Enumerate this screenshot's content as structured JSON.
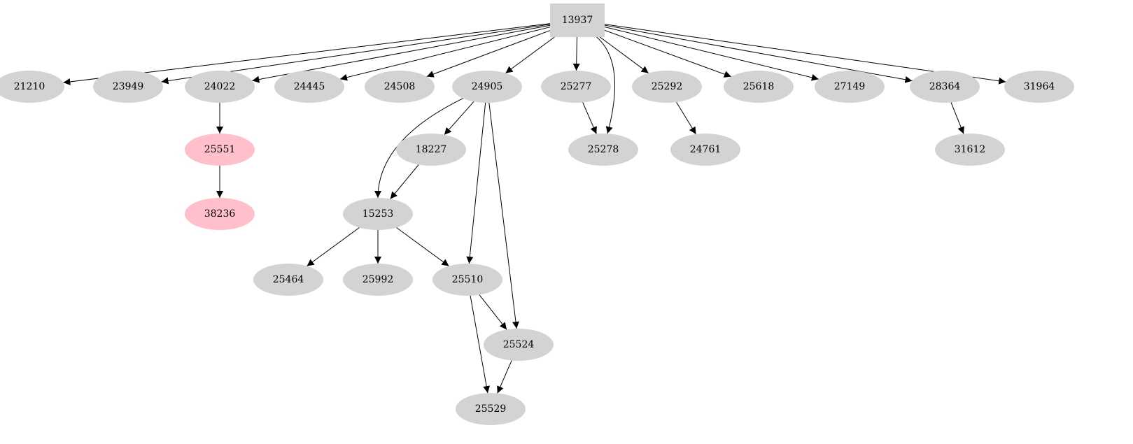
{
  "colors": {
    "default_fill": "#d3d3d3",
    "highlight_fill": "#ffc0cb",
    "edge": "#000000"
  },
  "nodes": [
    {
      "id": "13937",
      "shape": "box",
      "fill": "#d3d3d3"
    },
    {
      "id": "21210",
      "shape": "ellipse",
      "fill": "#d3d3d3"
    },
    {
      "id": "23949",
      "shape": "ellipse",
      "fill": "#d3d3d3"
    },
    {
      "id": "24022",
      "shape": "ellipse",
      "fill": "#d3d3d3"
    },
    {
      "id": "24445",
      "shape": "ellipse",
      "fill": "#d3d3d3"
    },
    {
      "id": "24508",
      "shape": "ellipse",
      "fill": "#d3d3d3"
    },
    {
      "id": "24905",
      "shape": "ellipse",
      "fill": "#d3d3d3"
    },
    {
      "id": "25277",
      "shape": "ellipse",
      "fill": "#d3d3d3"
    },
    {
      "id": "25292",
      "shape": "ellipse",
      "fill": "#d3d3d3"
    },
    {
      "id": "25618",
      "shape": "ellipse",
      "fill": "#d3d3d3"
    },
    {
      "id": "27149",
      "shape": "ellipse",
      "fill": "#d3d3d3"
    },
    {
      "id": "28364",
      "shape": "ellipse",
      "fill": "#d3d3d3"
    },
    {
      "id": "31964",
      "shape": "ellipse",
      "fill": "#d3d3d3"
    },
    {
      "id": "25551",
      "shape": "ellipse",
      "fill": "#ffc0cb"
    },
    {
      "id": "18227",
      "shape": "ellipse",
      "fill": "#d3d3d3"
    },
    {
      "id": "25278",
      "shape": "ellipse",
      "fill": "#d3d3d3"
    },
    {
      "id": "24761",
      "shape": "ellipse",
      "fill": "#d3d3d3"
    },
    {
      "id": "31612",
      "shape": "ellipse",
      "fill": "#d3d3d3"
    },
    {
      "id": "38236",
      "shape": "ellipse",
      "fill": "#ffc0cb"
    },
    {
      "id": "15253",
      "shape": "ellipse",
      "fill": "#d3d3d3"
    },
    {
      "id": "25464",
      "shape": "ellipse",
      "fill": "#d3d3d3"
    },
    {
      "id": "25992",
      "shape": "ellipse",
      "fill": "#d3d3d3"
    },
    {
      "id": "25510",
      "shape": "ellipse",
      "fill": "#d3d3d3"
    },
    {
      "id": "25524",
      "shape": "ellipse",
      "fill": "#d3d3d3"
    },
    {
      "id": "25529",
      "shape": "ellipse",
      "fill": "#d3d3d3"
    }
  ],
  "edges": [
    [
      "13937",
      "21210"
    ],
    [
      "13937",
      "23949"
    ],
    [
      "13937",
      "24022"
    ],
    [
      "13937",
      "24445"
    ],
    [
      "13937",
      "24508"
    ],
    [
      "13937",
      "24905"
    ],
    [
      "13937",
      "25277"
    ],
    [
      "13937",
      "25278"
    ],
    [
      "13937",
      "25292"
    ],
    [
      "13937",
      "25618"
    ],
    [
      "13937",
      "27149"
    ],
    [
      "13937",
      "28364"
    ],
    [
      "13937",
      "31964"
    ],
    [
      "24022",
      "25551"
    ],
    [
      "25551",
      "38236"
    ],
    [
      "24905",
      "15253"
    ],
    [
      "24905",
      "18227"
    ],
    [
      "24905",
      "25510"
    ],
    [
      "24905",
      "25524"
    ],
    [
      "25277",
      "25278"
    ],
    [
      "25292",
      "24761"
    ],
    [
      "28364",
      "31612"
    ],
    [
      "18227",
      "15253"
    ],
    [
      "15253",
      "25464"
    ],
    [
      "15253",
      "25992"
    ],
    [
      "15253",
      "25510"
    ],
    [
      "25510",
      "25524"
    ],
    [
      "25510",
      "25529"
    ],
    [
      "25524",
      "25529"
    ]
  ]
}
